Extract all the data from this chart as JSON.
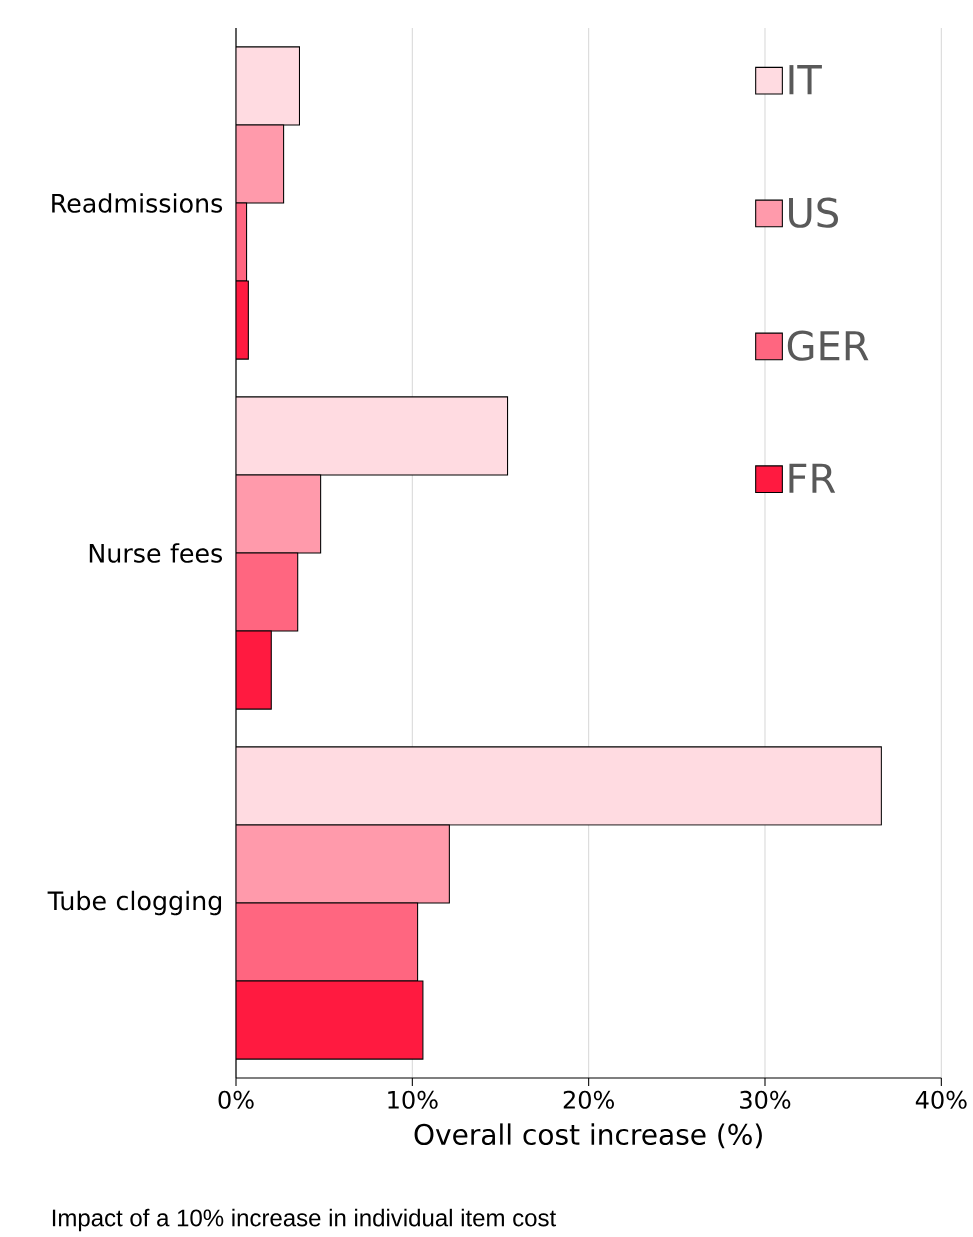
{
  "chart_data": {
    "type": "bar",
    "orientation": "horizontal",
    "categories": [
      "Readmissions",
      "Nurse fees",
      "Tube clogging"
    ],
    "series": [
      {
        "name": "IT",
        "color": "#ffdbe1",
        "values": [
          3.6,
          15.4,
          36.6
        ]
      },
      {
        "name": "US",
        "color": "#ff9aab",
        "values": [
          2.7,
          4.8,
          12.1
        ]
      },
      {
        "name": "GER",
        "color": "#ff6680",
        "values": [
          0.6,
          3.5,
          10.3
        ]
      },
      {
        "name": "FR",
        "color": "#ff1a40",
        "values": [
          0.7,
          2.0,
          10.6
        ]
      }
    ],
    "xlim": [
      0,
      40
    ],
    "xticks": [
      {
        "value": 0,
        "label": "0%"
      },
      {
        "value": 10,
        "label": "10%"
      },
      {
        "value": 20,
        "label": "20%"
      },
      {
        "value": 30,
        "label": "30%"
      },
      {
        "value": 40,
        "label": "40%"
      }
    ],
    "xlabel": "Overall cost increase (%)",
    "annotations": [
      "Impact of a 10% increase in individual item cost"
    ],
    "grid": "x",
    "legend": "top right"
  }
}
